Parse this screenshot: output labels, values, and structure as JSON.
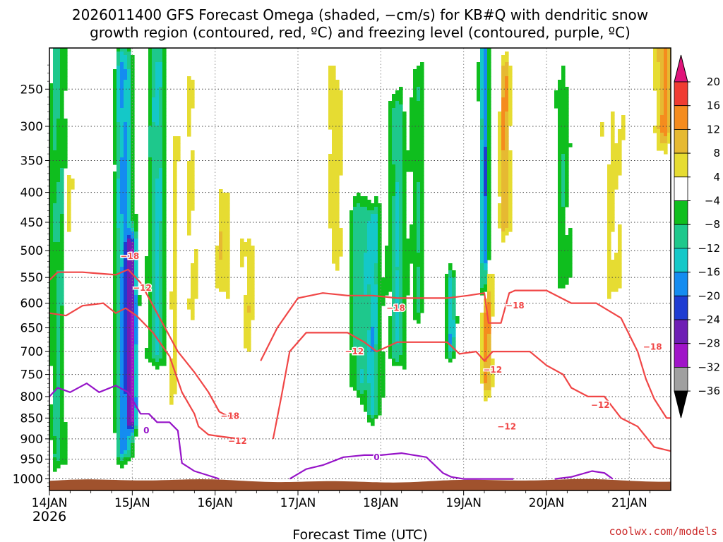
{
  "chart_data": {
    "type": "heatmap",
    "title": "2026011400 GFS Forecast Omega (shaded, −cm/s) for KB#Q with dendritic snow",
    "subtitle": "growth region (contoured, red, ºC) and freezing level (contoured, purple, ºC)",
    "xlabel": "Forecast Time (UTC)",
    "x_ticks": [
      "14JAN",
      "15JAN",
      "16JAN",
      "17JAN",
      "18JAN",
      "19JAN",
      "20JAN",
      "21JAN"
    ],
    "x_year": "2026",
    "xlim_days": [
      0,
      7.5
    ],
    "y_ticks": [
      "250",
      "300",
      "350",
      "400",
      "450",
      "500",
      "550",
      "600",
      "650",
      "700",
      "750",
      "800",
      "850",
      "900",
      "950",
      "1000"
    ],
    "ylim_hpa": [
      200,
      1030
    ],
    "colorbar": {
      "labels": [
        "20",
        "16",
        "12",
        "8",
        "4",
        "−4",
        "−8",
        "−12",
        "−16",
        "−20",
        "−24",
        "−28",
        "−32",
        "−36"
      ],
      "colors": [
        "#e0147a",
        "#f03c32",
        "#f58c1e",
        "#e6b932",
        "#e6dc32",
        "#ffffff",
        "#0fbe1e",
        "#1ec88c",
        "#14c8c8",
        "#148cf0",
        "#1e3cd2",
        "#6e1eb4",
        "#a014c8",
        "#a0a0a0",
        "#000000"
      ]
    },
    "omega_blobs": [
      {
        "t": 0.1,
        "p1": 200,
        "p2": 940,
        "w": 0.1,
        "v": -9
      },
      {
        "t": 0.25,
        "p1": 380,
        "p2": 700,
        "w": 0.06,
        "v": 5
      },
      {
        "t": 0.9,
        "p1": 230,
        "p2": 920,
        "w": 0.1,
        "v": -18
      },
      {
        "t": 1.0,
        "p1": 500,
        "p2": 850,
        "w": 0.06,
        "v": -22
      },
      {
        "t": 1.3,
        "p1": 220,
        "p2": 700,
        "w": 0.1,
        "v": -13
      },
      {
        "t": 1.5,
        "p1": 300,
        "p2": 800,
        "w": 0.06,
        "v": 5
      },
      {
        "t": 1.72,
        "p1": 260,
        "p2": 620,
        "w": 0.07,
        "v": 5
      },
      {
        "t": 2.1,
        "p1": 420,
        "p2": 560,
        "w": 0.08,
        "v": 8
      },
      {
        "t": 2.4,
        "p1": 500,
        "p2": 680,
        "w": 0.1,
        "v": 6
      },
      {
        "t": 3.45,
        "p1": 250,
        "p2": 500,
        "w": 0.08,
        "v": 7
      },
      {
        "t": 3.72,
        "p1": 440,
        "p2": 760,
        "w": 0.1,
        "v": -10
      },
      {
        "t": 3.9,
        "p1": 450,
        "p2": 820,
        "w": 0.1,
        "v": -14
      },
      {
        "t": 4.2,
        "p1": 290,
        "p2": 700,
        "w": 0.1,
        "v": -12
      },
      {
        "t": 4.45,
        "p1": 250,
        "p2": 600,
        "w": 0.08,
        "v": -8
      },
      {
        "t": 4.85,
        "p1": 570,
        "p2": 680,
        "w": 0.06,
        "v": -15
      },
      {
        "t": 5.25,
        "p1": 200,
        "p2": 560,
        "w": 0.05,
        "v": -20
      },
      {
        "t": 5.28,
        "p1": 560,
        "p2": 760,
        "w": 0.07,
        "v": 13
      },
      {
        "t": 5.5,
        "p1": 240,
        "p2": 440,
        "w": 0.07,
        "v": 12
      },
      {
        "t": 6.2,
        "p1": 260,
        "p2": 540,
        "w": 0.1,
        "v": -7
      },
      {
        "t": 6.8,
        "p1": 300,
        "p2": 560,
        "w": 0.14,
        "v": 5
      },
      {
        "t": 7.42,
        "p1": 200,
        "p2": 300,
        "w": 0.1,
        "v": 13
      }
    ],
    "dendritic_contours": [
      {
        "label": "−18",
        "color": "#f04646",
        "t": [
          0.0,
          0.1,
          0.4,
          0.8,
          0.95,
          1.1,
          1.3,
          1.55,
          1.75,
          1.92,
          2.05,
          2.15,
          2.25
        ],
        "p": [
          555,
          540,
          540,
          545,
          535,
          560,
          620,
          700,
          745,
          790,
          835,
          845,
          845
        ]
      },
      {
        "label": "−18",
        "color": "#f04646",
        "t": [
          2.55,
          2.75,
          3.0,
          3.3,
          3.6,
          3.9,
          4.2,
          4.5,
          4.8,
          5.05,
          5.25,
          5.3,
          5.45,
          5.55,
          5.62,
          5.8,
          6.0,
          6.3,
          6.6,
          6.9,
          7.1,
          7.2,
          7.3,
          7.45,
          7.5
        ],
        "p": [
          720,
          650,
          590,
          580,
          585,
          585,
          590,
          590,
          590,
          585,
          580,
          640,
          640,
          580,
          575,
          575,
          575,
          600,
          600,
          630,
          700,
          760,
          805,
          850,
          850
        ]
      },
      {
        "label": "−12",
        "color": "#f04646",
        "t": [
          0.0,
          0.2,
          0.4,
          0.65,
          0.8,
          0.92,
          1.05,
          1.25,
          1.45,
          1.6,
          1.75,
          1.8,
          1.92,
          2.1,
          2.3
        ],
        "p": [
          620,
          625,
          605,
          600,
          620,
          610,
          625,
          660,
          710,
          790,
          840,
          870,
          890,
          895,
          900
        ]
      },
      {
        "label": "−12",
        "color": "#f04646",
        "t": [
          2.7,
          2.8,
          2.9,
          3.1,
          3.4,
          3.6,
          3.8,
          3.95,
          4.2,
          4.5,
          4.8,
          4.95,
          5.15,
          5.25,
          5.35,
          5.6,
          5.8,
          6.0,
          6.2,
          6.3,
          6.5,
          6.7,
          6.9,
          7.1,
          7.3,
          7.5
        ],
        "p": [
          900,
          800,
          700,
          660,
          660,
          660,
          680,
          700,
          680,
          680,
          680,
          705,
          700,
          720,
          700,
          700,
          700,
          730,
          750,
          780,
          800,
          800,
          850,
          870,
          920,
          930
        ]
      }
    ],
    "contour_labels": [
      {
        "t": 0.97,
        "p": 510,
        "text": "−18"
      },
      {
        "t": 1.12,
        "p": 570,
        "text": "−12"
      },
      {
        "t": 2.18,
        "p": 845,
        "text": "−18"
      },
      {
        "t": 2.27,
        "p": 905,
        "text": "−12"
      },
      {
        "t": 4.18,
        "p": 610,
        "text": "−18"
      },
      {
        "t": 3.68,
        "p": 700,
        "text": "−12"
      },
      {
        "t": 5.62,
        "p": 605,
        "text": "−18"
      },
      {
        "t": 5.35,
        "p": 740,
        "text": "−12"
      },
      {
        "t": 5.52,
        "p": 870,
        "text": "−12"
      },
      {
        "t": 6.65,
        "p": 820,
        "text": "−12"
      },
      {
        "t": 7.28,
        "p": 690,
        "text": "−18"
      }
    ],
    "freezing_level": {
      "label": "0",
      "color": "#9614c8",
      "segments": [
        {
          "t": [
            0.0,
            0.1,
            0.25,
            0.45,
            0.6,
            0.8,
            0.95,
            1.1,
            1.2,
            1.3,
            1.45,
            1.55,
            1.6,
            1.75,
            1.9,
            2.05
          ],
          "p": [
            800,
            780,
            790,
            770,
            790,
            775,
            790,
            840,
            840,
            860,
            860,
            880,
            960,
            980,
            990,
            1000
          ]
        },
        {
          "t": [
            2.9,
            3.1,
            3.3,
            3.55,
            3.8,
            4.0,
            4.25,
            4.55,
            4.75,
            4.85,
            5.0,
            5.3,
            5.6
          ],
          "p": [
            1000,
            975,
            965,
            945,
            940,
            940,
            935,
            945,
            985,
            995,
            1000,
            1000,
            1000
          ]
        },
        {
          "t": [
            6.1,
            6.3,
            6.55,
            6.7,
            6.8
          ],
          "p": [
            1000,
            995,
            980,
            985,
            1000
          ]
        }
      ]
    },
    "freezing_labels": [
      {
        "t": 1.17,
        "p": 880,
        "text": "0"
      },
      {
        "t": 3.95,
        "p": 945,
        "text": "0"
      }
    ],
    "terrain_color": "#a0522d"
  },
  "credit": "coolwx.com/models"
}
